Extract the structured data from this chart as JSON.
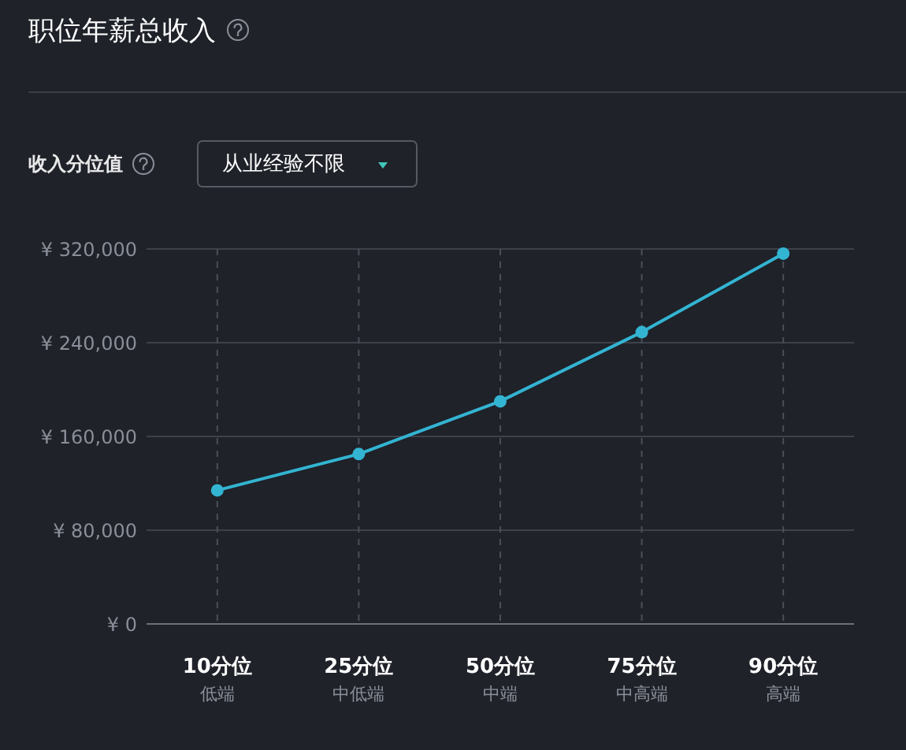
{
  "chart_data": {
    "type": "line",
    "title": "职位年薪总收入",
    "annotations": [
      "收入分位值",
      "从业经验不限"
    ],
    "categories": [
      "10分位低端",
      "25分位中低端",
      "50分位中端",
      "75分位中高端",
      "90分位高端"
    ],
    "series": [
      {
        "color": "#33b4d2",
        "values": [
          114000,
          145000,
          190000,
          249000,
          316000
        ]
      }
    ],
    "ylim": [
      0,
      320000
    ],
    "yticks": [
      {
        "value": 0,
        "label": "¥ 0"
      },
      {
        "value": 80000,
        "label": "¥ 80,000"
      },
      {
        "value": 160000,
        "label": "¥ 160,000"
      },
      {
        "value": 240000,
        "label": "¥ 240,000"
      },
      {
        "value": 320000,
        "label": "¥ 320,000"
      }
    ],
    "grid": true,
    "marker": "circle",
    "line_style": "solid"
  }
}
